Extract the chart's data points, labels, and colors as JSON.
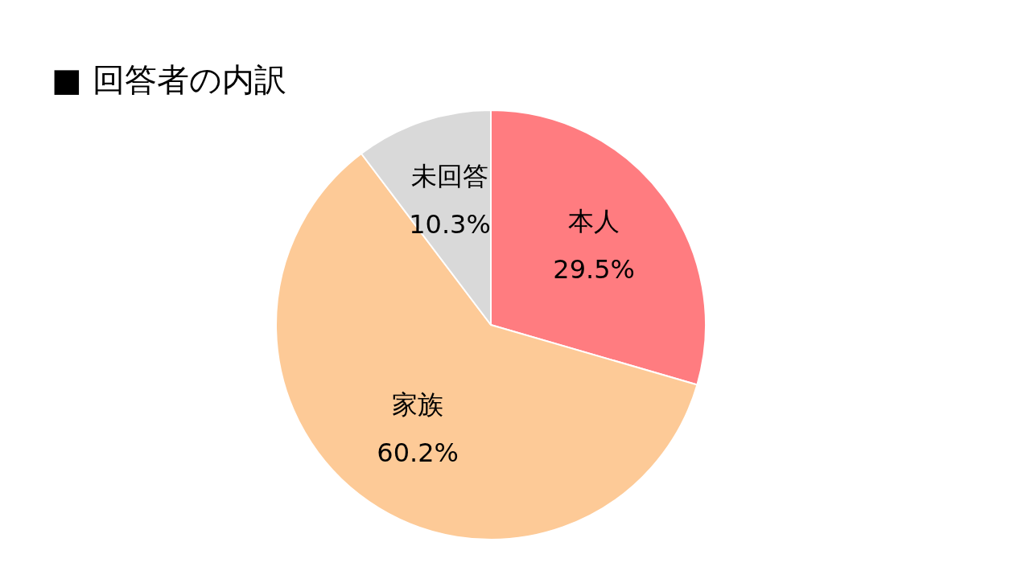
{
  "chart_data": {
    "type": "pie",
    "title": "■ 回答者の内訳",
    "categories": [
      "本人",
      "家族",
      "未回答"
    ],
    "values": [
      29.5,
      60.2,
      10.3
    ],
    "value_labels": [
      "29.5%",
      "60.2%",
      "10.3%"
    ],
    "colors": [
      "#ff7c80",
      "#fdca97",
      "#d9d9d9"
    ],
    "legend": false
  }
}
